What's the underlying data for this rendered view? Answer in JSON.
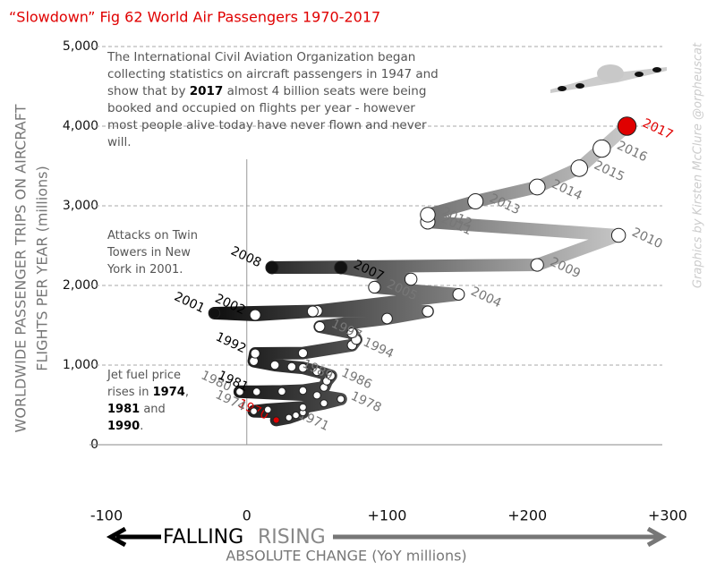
{
  "chart_data": {
    "type": "scatter",
    "title": "“Slowdown” Fig 62 World Air Passengers 1970-2017",
    "y_label": [
      "WORLDWIDE PASSENGER TRIPS ON AIRCRAFT",
      "FLIGHTS PER YEAR (millions)"
    ],
    "x_label": "ABSOLUTE CHANGE (YoY millions)",
    "falling_label": "FALLING",
    "rising_label": "RISING",
    "credit": "Graphics by Kirsten McClure @orpheuscat",
    "annotations": [
      {
        "lines": [
          [
            "The International Civil Aviation Organization began"
          ],
          [
            "collecting statistics on aircraft passengers in 1947 and"
          ],
          [
            "show that by ",
            "2017",
            " almost 4 billion seats were being"
          ],
          [
            "booked and occupied on flights per year - however"
          ],
          [
            "most people alive today have never flown and never"
          ],
          [
            "will."
          ]
        ]
      },
      {
        "lines": [
          [
            "Attacks on Twin"
          ],
          [
            "Towers in New"
          ],
          [
            "York in 2001."
          ]
        ]
      },
      {
        "lines": [
          [
            "Jet fuel price"
          ],
          [
            "rises in ",
            "1974",
            ","
          ],
          [
            "",
            "1981",
            " and"
          ],
          [
            "",
            "1990",
            "."
          ]
        ]
      }
    ],
    "xlim": [
      -100,
      300
    ],
    "xticks": [
      {
        "value": -100,
        "label": "-100"
      },
      0,
      {
        "value": 100,
        "label": "+100"
      },
      {
        "value": 200,
        "label": "+200"
      },
      {
        "value": 300,
        "label": "+300"
      }
    ],
    "ylim": [
      0,
      5000
    ],
    "yticks": [
      0,
      {
        "value": 1000,
        "label": "1,000"
      },
      {
        "value": 2000,
        "label": "2,000"
      },
      {
        "value": 3000,
        "label": "3,000"
      },
      {
        "value": 4000,
        "label": "4,000"
      },
      {
        "value": 5000,
        "label": "5,000"
      }
    ],
    "grid": true,
    "series": [
      {
        "x": [
          21,
          30,
          35,
          40,
          5,
          15,
          40,
          55,
          67,
          50,
          -5,
          7,
          25,
          40,
          55,
          57,
          60,
          50,
          40,
          32,
          20,
          5,
          6,
          40,
          75,
          78,
          75,
          52,
          100,
          129,
          50,
          -23,
          6,
          47,
          151,
          91,
          117,
          67,
          18,
          207,
          265,
          129,
          129,
          163,
          207,
          237,
          253,
          271
        ],
        "values": [
          310,
          340,
          370,
          405,
          420,
          440,
          470,
          520,
          573,
          620,
          665,
          665,
          670,
          680,
          720,
          800,
          865,
          920,
          965,
          977,
          1000,
          1050,
          1146,
          1150,
          1250,
          1320,
          1404,
          1483,
          1584,
          1674,
          1680,
          1652,
          1629,
          1674,
          1888,
          1978,
          2079,
          2225,
          2225,
          2258,
          2629,
          2798,
          2888,
          3056,
          3236,
          3472,
          3719,
          4000
        ],
        "point_labels": [
          "1970",
          "1971",
          null,
          null,
          "1974",
          null,
          null,
          null,
          "1978",
          null,
          "1980",
          "1981",
          null,
          null,
          null,
          null,
          "1986",
          null,
          null,
          "1989",
          null,
          null,
          "1992",
          null,
          "1994",
          null,
          null,
          "1997",
          null,
          null,
          null,
          "2001",
          "2002",
          null,
          "2004",
          "2005",
          null,
          "2007",
          "2008",
          "2009",
          "2010",
          "2011",
          "2012",
          "2013",
          "2014",
          "2015",
          "2016",
          "2017"
        ],
        "label_colors": [
          "#e00000",
          "#777",
          null,
          null,
          "#777",
          null,
          null,
          null,
          "#777",
          null,
          "#777",
          "#000",
          null,
          null,
          null,
          null,
          "#777",
          null,
          null,
          "#777",
          null,
          null,
          "#000",
          null,
          "#777",
          null,
          null,
          "#777",
          null,
          null,
          null,
          "#000",
          "#000",
          null,
          "#777",
          "#777",
          null,
          "#000",
          "#000",
          "#777",
          "#777",
          "#777",
          "#777",
          "#777",
          "#777",
          "#777",
          "#777",
          "#e00000"
        ],
        "marker_colors": [
          "#e00000",
          "#fff",
          "#fff",
          "#fff",
          "#fff",
          "#fff",
          "#fff",
          "#fff",
          "#fff",
          "#fff",
          "#fff",
          "#fff",
          "#fff",
          "#fff",
          "#fff",
          "#fff",
          "#fff",
          "#fff",
          "#fff",
          "#fff",
          "#fff",
          "#fff",
          "#fff",
          "#fff",
          "#fff",
          "#fff",
          "#fff",
          "#fff",
          "#fff",
          "#fff",
          "#fff",
          "#111",
          "#fff",
          "#fff",
          "#fff",
          "#fff",
          "#fff",
          "#111",
          "#111",
          "#fff",
          "#fff",
          "#fff",
          "#fff",
          "#fff",
          "#fff",
          "#fff",
          "#fff",
          "#e00000"
        ]
      }
    ]
  }
}
